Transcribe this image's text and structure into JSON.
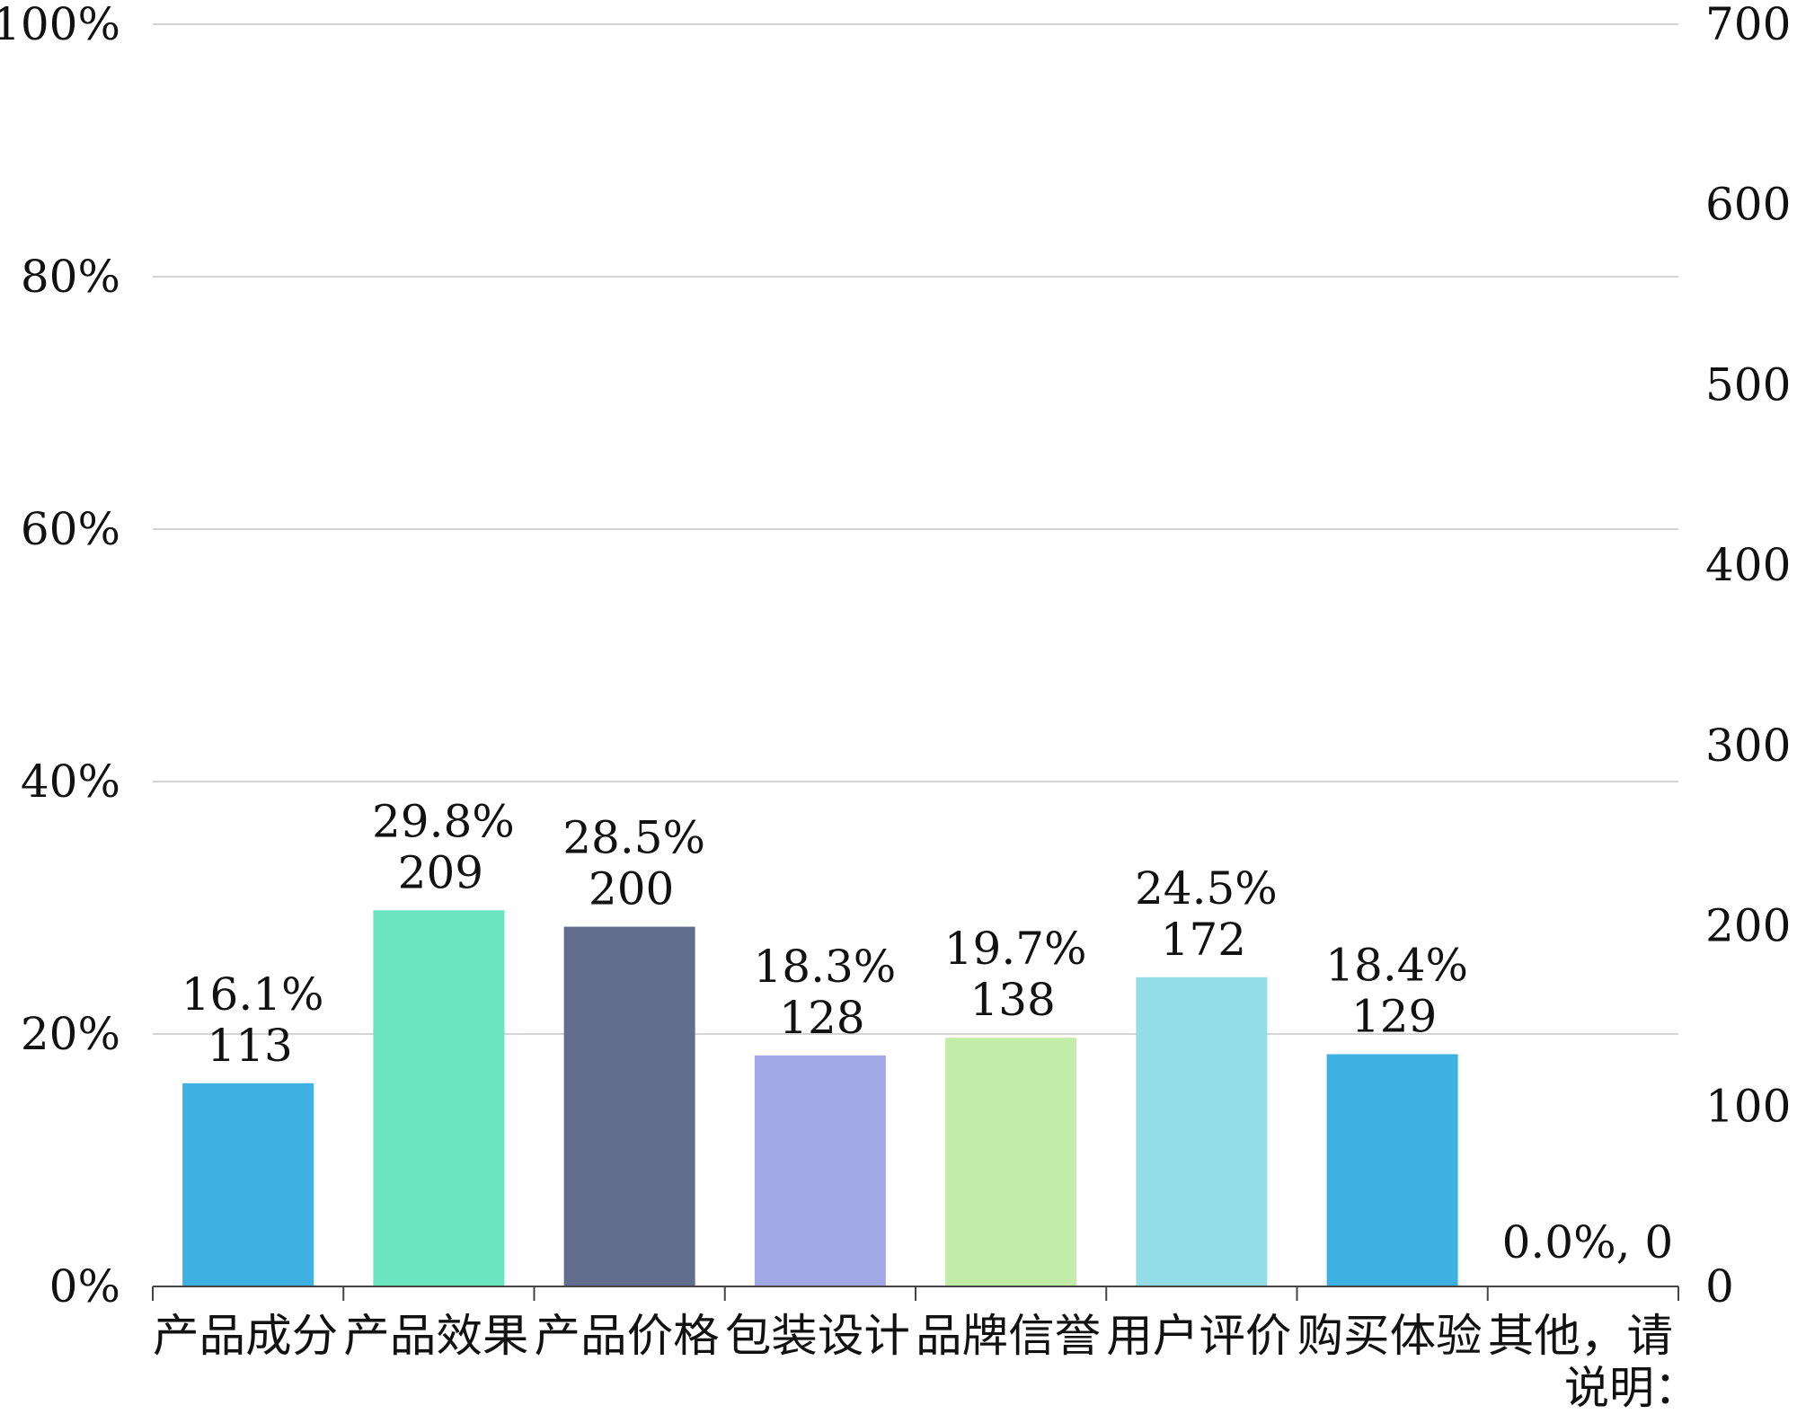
{
  "chart_data": {
    "type": "bar",
    "categories": [
      "产品成分",
      "产品效果",
      "产品价格",
      "包装设计",
      "品牌信誉",
      "用户评价",
      "购买体验",
      "其他，请说明："
    ],
    "values": [
      113,
      209,
      200,
      128,
      138,
      172,
      129,
      0
    ],
    "percentages": [
      16.1,
      29.8,
      28.5,
      18.3,
      19.7,
      24.5,
      18.4,
      0.0
    ],
    "data_labels": [
      [
        "16.1%",
        "113"
      ],
      [
        "29.8%",
        "209"
      ],
      [
        "28.5%",
        "200"
      ],
      [
        "18.3%",
        "128"
      ],
      [
        "19.7%",
        "138"
      ],
      [
        "24.5%",
        "172"
      ],
      [
        "18.4%",
        "129"
      ],
      [
        "0.0%, 0"
      ]
    ],
    "colors": [
      "#3fb0e2",
      "#6be4c0",
      "#636e8f",
      "#a2a8e6",
      "#c3eca8",
      "#92dde6",
      "#3fb0e2",
      "#3fb0e2"
    ],
    "category_lines": [
      [
        "产品成分"
      ],
      [
        "产品效果"
      ],
      [
        "产品价格"
      ],
      [
        "包装设计"
      ],
      [
        "品牌信誉"
      ],
      [
        "用户评价"
      ],
      [
        "购买体验"
      ],
      [
        "其他，请",
        "说明："
      ]
    ],
    "y_left": {
      "range": [
        0,
        100
      ],
      "ticks": [
        "0%",
        "20%",
        "40%",
        "60%",
        "80%",
        "100%"
      ]
    },
    "y_right": {
      "range": [
        0,
        700
      ],
      "ticks": [
        "0",
        "100",
        "200",
        "300",
        "400",
        "500",
        "600",
        "700"
      ]
    },
    "grid": true,
    "title": "",
    "xlabel": "",
    "ylabel": ""
  }
}
